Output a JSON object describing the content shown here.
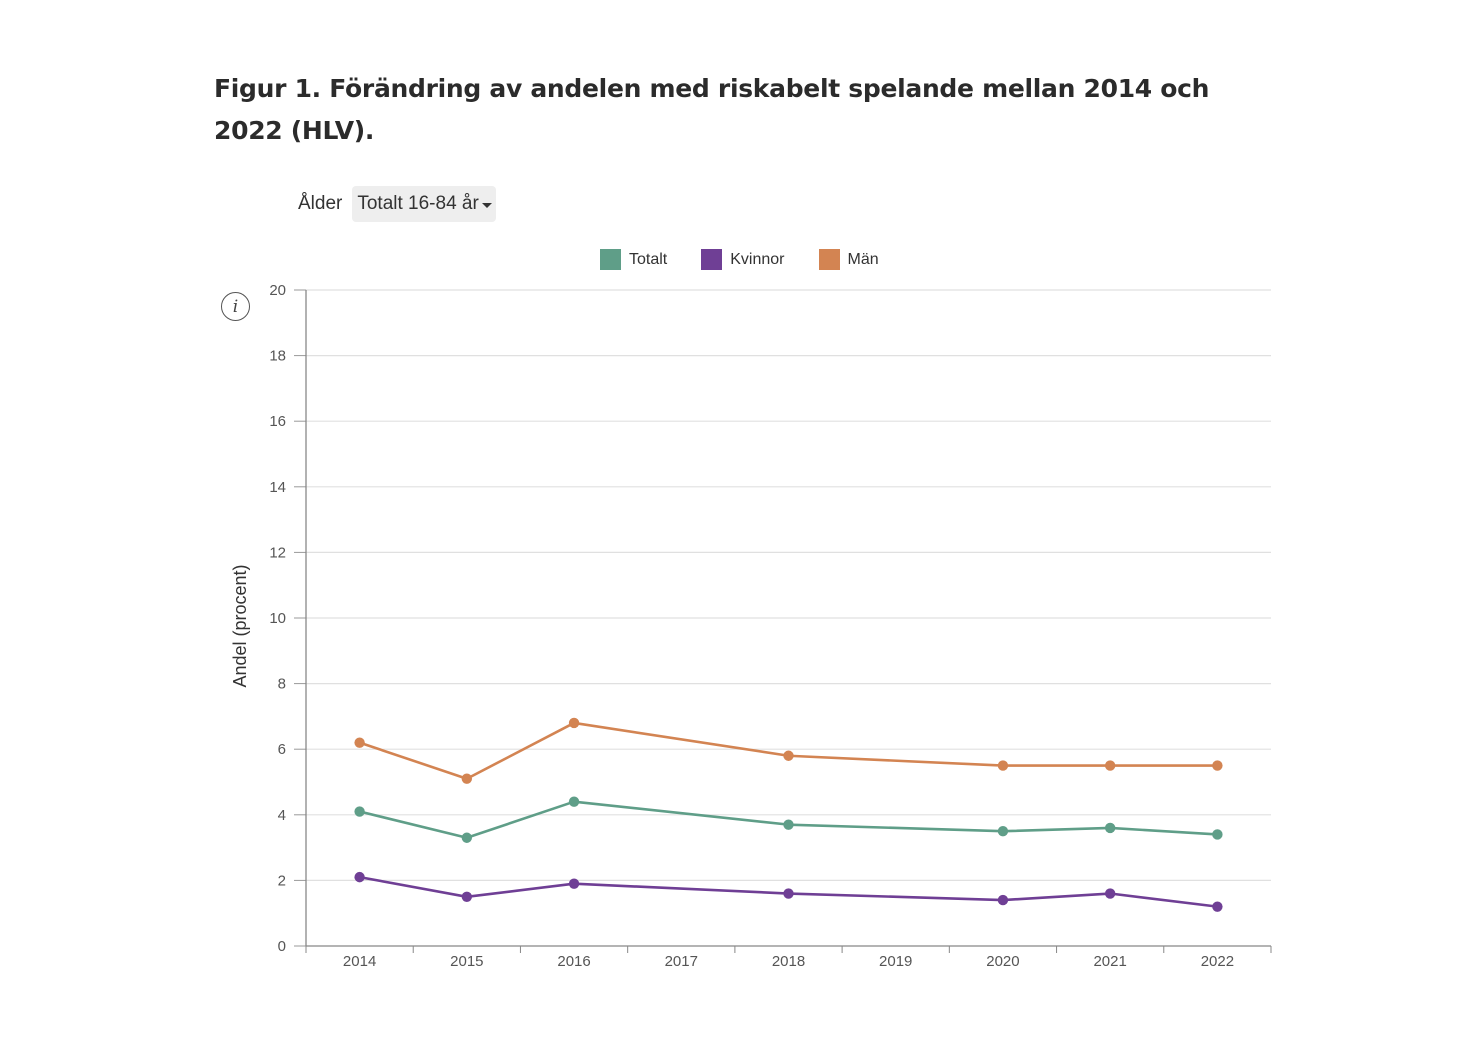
{
  "title": "Figur 1. Förändring av andelen med riskabelt spelande mellan 2014 och 2022 (HLV).",
  "filter": {
    "label": "Ålder",
    "selected": "Totalt 16-84 år",
    "icon": "caret-down-icon"
  },
  "info_icon": {
    "glyph": "i",
    "icon": "info-icon"
  },
  "chart_data": {
    "type": "line",
    "title": "Figur 1. Förändring av andelen med riskabelt spelande mellan 2014 och 2022 (HLV).",
    "xlabel": "",
    "ylabel": "Andel (procent)",
    "ylim": [
      0,
      20
    ],
    "yticks": [
      0,
      2,
      4,
      6,
      8,
      10,
      12,
      14,
      16,
      18,
      20
    ],
    "categories": [
      "2014",
      "2015",
      "2016",
      "2017",
      "2018",
      "2019",
      "2020",
      "2021",
      "2022"
    ],
    "grid": true,
    "legend_position": "top-center",
    "series": [
      {
        "name": "Totalt",
        "color": "#5f9e88",
        "values": [
          4.1,
          3.3,
          4.4,
          null,
          3.7,
          null,
          3.5,
          3.6,
          3.4
        ]
      },
      {
        "name": "Kvinnor",
        "color": "#6f3f95",
        "values": [
          2.1,
          1.5,
          1.9,
          null,
          1.6,
          null,
          1.4,
          1.6,
          1.2
        ]
      },
      {
        "name": "Män",
        "color": "#d38452",
        "values": [
          6.2,
          5.1,
          6.8,
          null,
          5.8,
          null,
          5.5,
          5.5,
          5.5
        ]
      }
    ]
  }
}
